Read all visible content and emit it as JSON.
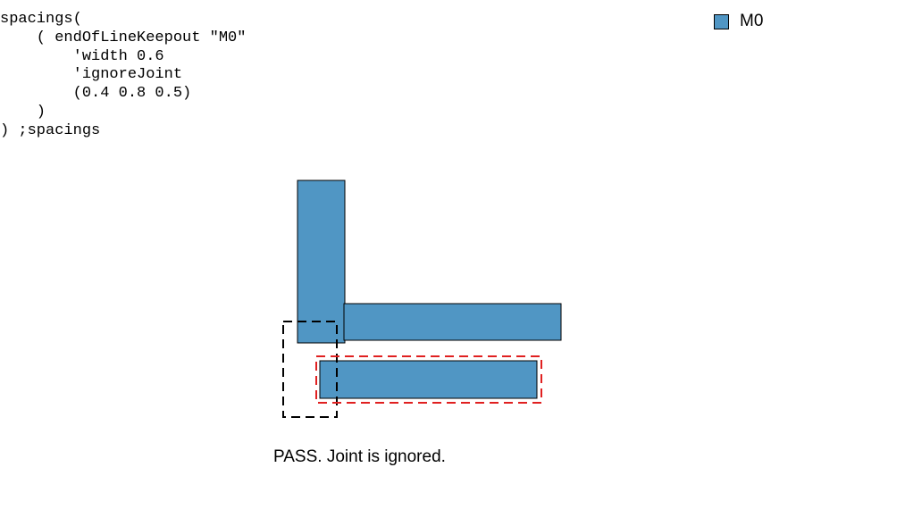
{
  "code": {
    "lines": [
      "spacings(",
      "    ( endOfLineKeepout \"M0\"",
      "        'width 0.6",
      "        'ignoreJoint",
      "        (0.4 0.8 0.5)",
      "    )",
      ") ;spacings"
    ]
  },
  "legend": {
    "label": "M0",
    "color": "#5096c4"
  },
  "colors": {
    "shape_fill": "#5096c4",
    "shape_stroke": "#000000",
    "keepout_window": "#000000",
    "flagged_outline": "#e02020"
  },
  "caption": "PASS. Joint is ignored."
}
